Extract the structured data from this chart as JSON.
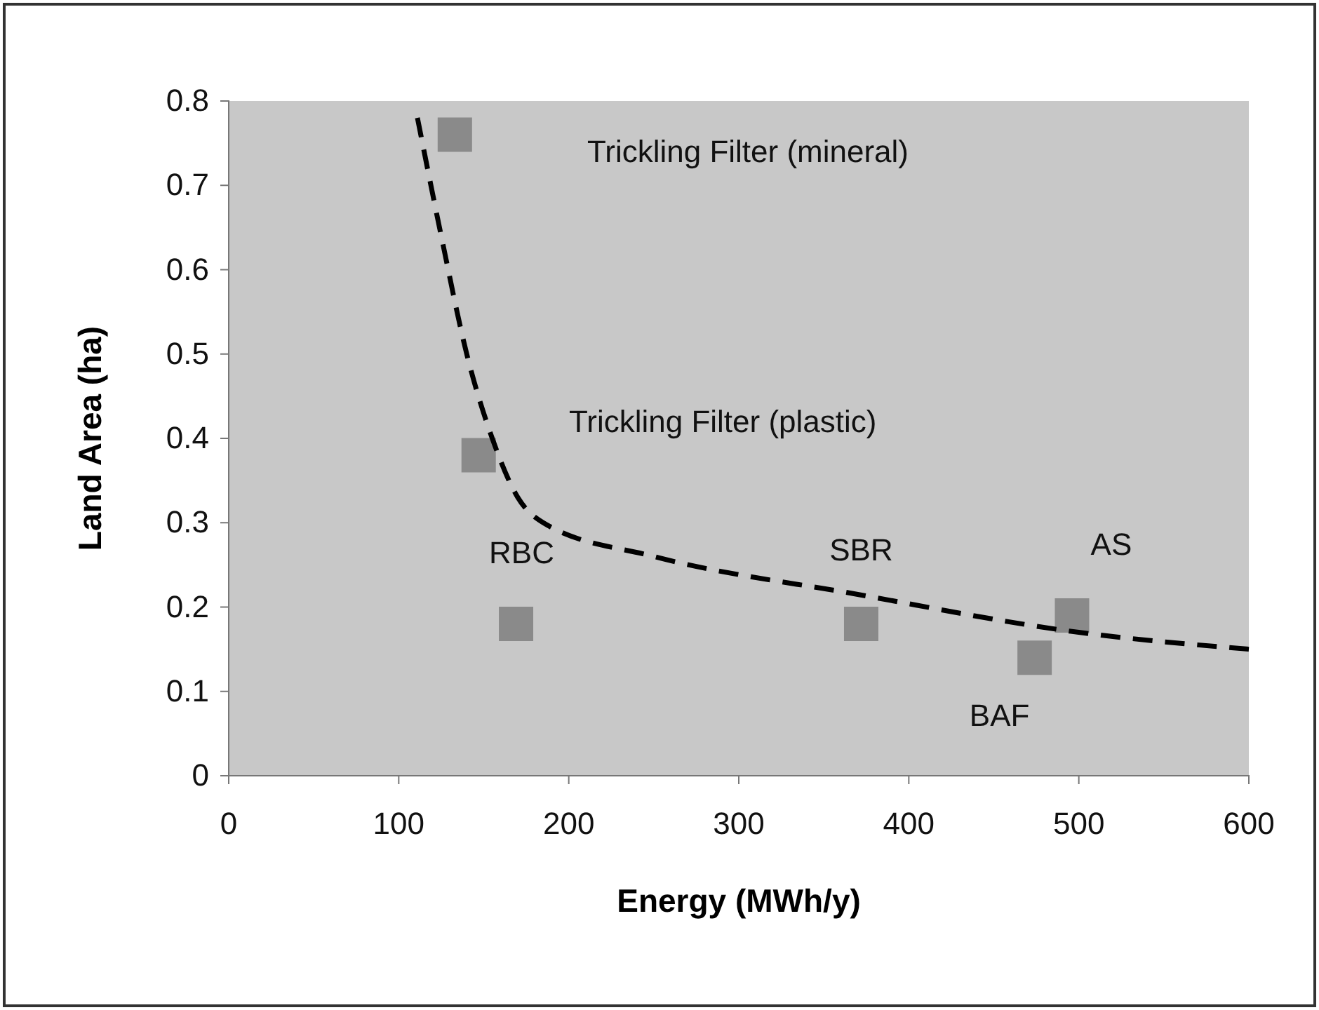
{
  "chart_data": {
    "type": "scatter",
    "xlabel": "Energy (MWh/y)",
    "ylabel": "Land Area (ha)",
    "xlim": [
      0,
      600
    ],
    "ylim": [
      0,
      0.8
    ],
    "xticks": [
      0,
      100,
      200,
      300,
      400,
      500,
      600
    ],
    "yticks": [
      0,
      0.1,
      0.2,
      0.3,
      0.4,
      0.5,
      0.6,
      0.7,
      0.8
    ],
    "grid": false,
    "marker": "square",
    "series": [
      {
        "color": "#8a8a8a",
        "x": [
          133,
          147,
          169,
          372,
          474,
          496
        ],
        "values": [
          0.76,
          0.38,
          0.18,
          0.18,
          0.14,
          0.19
        ]
      },
      {
        "type": "line",
        "color": "#000000",
        "line_style": "dashed",
        "marker": "none",
        "x": [
          111,
          125,
          140,
          155,
          170,
          185,
          250,
          370,
          500,
          600
        ],
        "values": [
          0.78,
          0.64,
          0.5,
          0.4,
          0.33,
          0.3,
          0.26,
          0.215,
          0.17,
          0.15
        ]
      }
    ],
    "annotations": [
      "Trickling Filter (mineral)",
      {
        "text": "Trickling Filter (plastic)",
        "x": 147,
        "y": 0.38
      },
      {
        "text": "RBC",
        "x": 169,
        "y": 0.18
      },
      {
        "text": "SBR",
        "x": 372,
        "y": 0.18
      },
      {
        "text": "AS",
        "x": 496,
        "y": 0.19
      },
      {
        "text": "BAF",
        "x": 474,
        "y": 0.14
      }
    ]
  }
}
